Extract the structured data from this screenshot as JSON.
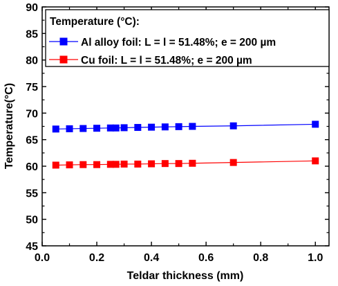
{
  "chart_data": {
    "type": "line",
    "title": "",
    "xlabel": "Teldar thickness (mm)",
    "ylabel": "Temperature(°C)",
    "xlim": [
      0.0,
      1.05
    ],
    "ylim": [
      45,
      90
    ],
    "xticks": [
      0.0,
      0.2,
      0.4,
      0.6,
      0.8,
      1.0
    ],
    "xtick_labels": [
      "0.0",
      "0.2",
      "0.4",
      "0.6",
      "0.8",
      "1.0"
    ],
    "yticks": [
      45,
      50,
      55,
      60,
      65,
      70,
      75,
      80,
      85,
      90
    ],
    "ytick_labels": [
      "45",
      "50",
      "55",
      "60",
      "65",
      "70",
      "75",
      "80",
      "85",
      "90"
    ],
    "grid": false,
    "legend": {
      "title": "Temperature (°C):",
      "position": "top-left"
    },
    "series": [
      {
        "name": "Al alloy foil: L = l = 51.48%; e = 200 µm",
        "color": "#0000ff",
        "marker": "square",
        "x": [
          0.05,
          0.1,
          0.15,
          0.2,
          0.25,
          0.27,
          0.3,
          0.35,
          0.4,
          0.45,
          0.5,
          0.55,
          0.7,
          1.0
        ],
        "y": [
          67.0,
          67.05,
          67.1,
          67.15,
          67.2,
          67.2,
          67.25,
          67.3,
          67.35,
          67.4,
          67.45,
          67.5,
          67.6,
          67.9
        ]
      },
      {
        "name": "Cu foil: L = l = 51.48%; e = 200 µm",
        "color": "#ff0000",
        "marker": "square",
        "x": [
          0.05,
          0.1,
          0.15,
          0.2,
          0.25,
          0.27,
          0.3,
          0.35,
          0.4,
          0.45,
          0.5,
          0.55,
          0.7,
          1.0
        ],
        "y": [
          60.2,
          60.25,
          60.3,
          60.3,
          60.35,
          60.35,
          60.4,
          60.4,
          60.45,
          60.5,
          60.5,
          60.55,
          60.7,
          61.0
        ]
      }
    ]
  }
}
